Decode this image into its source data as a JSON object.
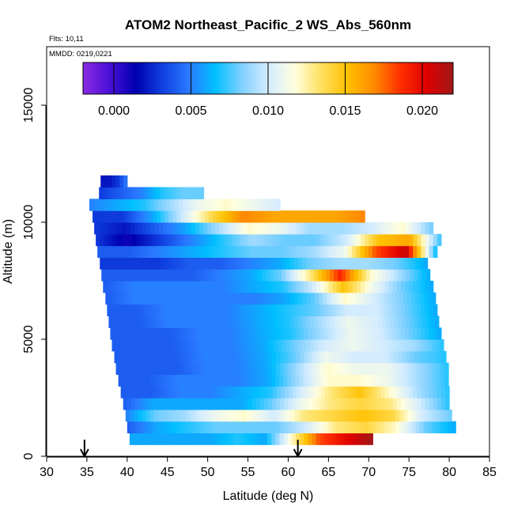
{
  "chart_data": {
    "type": "heatmap",
    "title": "ATOM2 Northeast_Pacific_2 WS_Abs_560nm",
    "flights_note": "Flts: 10,11",
    "date_note": "MMDD: 0219,0221",
    "xlabel": "Latitude (deg N)",
    "ylabel": "Altitude (m)",
    "xlim": [
      30,
      85
    ],
    "ylim": [
      0,
      17500
    ],
    "x_ticks": [
      "30",
      "35",
      "40",
      "45",
      "50",
      "55",
      "60",
      "65",
      "70",
      "75",
      "80",
      "85"
    ],
    "y_ticks": [
      "0",
      "5000",
      "10000",
      "15000"
    ],
    "colorbar": {
      "min": -0.002,
      "max": 0.022,
      "ticks": [
        "0.000",
        "0.005",
        "0.010",
        "0.015",
        "0.020"
      ],
      "colors": [
        "#8a2be2",
        "#4a10d8",
        "#0000b0",
        "#0f3fe0",
        "#2a7aff",
        "#00bfff",
        "#7fd0ff",
        "#d4ecff",
        "#ffffe0",
        "#ffe060",
        "#ffc000",
        "#ff8c00",
        "#ff3000",
        "#e00000",
        "#a01818"
      ]
    },
    "markers": [
      {
        "label": "flight marker",
        "x": 34.7
      },
      {
        "label": "flight marker",
        "x": 61.2
      }
    ],
    "grid_step": {
      "lat": 0.5,
      "alt": 500
    },
    "rows": [
      {
        "alt": 750,
        "lat": [
          40.3,
          70.5
        ],
        "values": [
          0.006,
          0.006,
          0.006,
          0.006,
          0.007,
          0.006,
          0.012,
          0.018,
          0.02,
          0.022
        ]
      },
      {
        "alt": 1250,
        "lat": [
          40.0,
          80.8
        ],
        "values": [
          0.004,
          0.006,
          0.007,
          0.008,
          0.008,
          0.008,
          0.01,
          0.013,
          0.014,
          0.012,
          0.008,
          0.006
        ]
      },
      {
        "alt": 1750,
        "lat": [
          39.8,
          80.3
        ],
        "values": [
          0.005,
          0.008,
          0.009,
          0.011,
          0.012,
          0.01,
          0.013,
          0.014,
          0.015,
          0.014,
          0.01,
          0.008
        ]
      },
      {
        "alt": 2250,
        "lat": [
          39.5,
          80.0
        ],
        "values": [
          0.004,
          0.006,
          0.006,
          0.006,
          0.006,
          0.008,
          0.011,
          0.013,
          0.014,
          0.013,
          0.01,
          0.007
        ]
      },
      {
        "alt": 2750,
        "lat": [
          39.2,
          80.0
        ],
        "values": [
          0.004,
          0.004,
          0.005,
          0.005,
          0.006,
          0.007,
          0.01,
          0.013,
          0.015,
          0.012,
          0.009,
          0.007
        ]
      },
      {
        "alt": 3250,
        "lat": [
          38.9,
          79.9
        ],
        "values": [
          0.004,
          0.004,
          0.005,
          0.005,
          0.005,
          0.006,
          0.009,
          0.012,
          0.012,
          0.011,
          0.009,
          0.007
        ]
      },
      {
        "alt": 3750,
        "lat": [
          38.6,
          79.9
        ],
        "values": [
          0.004,
          0.004,
          0.004,
          0.005,
          0.005,
          0.006,
          0.009,
          0.012,
          0.011,
          0.011,
          0.009,
          0.007
        ]
      },
      {
        "alt": 4250,
        "lat": [
          38.4,
          79.6
        ],
        "values": [
          0.004,
          0.004,
          0.004,
          0.005,
          0.005,
          0.006,
          0.008,
          0.011,
          0.01,
          0.01,
          0.008,
          0.007
        ]
      },
      {
        "alt": 4750,
        "lat": [
          38.1,
          79.3
        ],
        "values": [
          0.004,
          0.004,
          0.004,
          0.005,
          0.005,
          0.006,
          0.008,
          0.01,
          0.011,
          0.01,
          0.009,
          0.007
        ]
      },
      {
        "alt": 5250,
        "lat": [
          37.9,
          79.0
        ],
        "values": [
          0.004,
          0.004,
          0.004,
          0.005,
          0.005,
          0.006,
          0.007,
          0.009,
          0.011,
          0.01,
          0.008,
          0.006
        ]
      },
      {
        "alt": 5750,
        "lat": [
          37.7,
          78.7
        ],
        "values": [
          0.004,
          0.004,
          0.005,
          0.005,
          0.005,
          0.006,
          0.007,
          0.009,
          0.011,
          0.01,
          0.008,
          0.006
        ]
      },
      {
        "alt": 6250,
        "lat": [
          37.5,
          78.5
        ],
        "values": [
          0.004,
          0.004,
          0.005,
          0.005,
          0.005,
          0.006,
          0.007,
          0.008,
          0.01,
          0.01,
          0.008,
          0.006
        ]
      },
      {
        "alt": 6750,
        "lat": [
          37.3,
          78.3
        ],
        "values": [
          0.004,
          0.005,
          0.005,
          0.005,
          0.005,
          0.005,
          0.006,
          0.008,
          0.012,
          0.01,
          0.008,
          0.006
        ]
      },
      {
        "alt": 7250,
        "lat": [
          37.0,
          78.0
        ],
        "values": [
          0.004,
          0.005,
          0.005,
          0.005,
          0.005,
          0.006,
          0.007,
          0.01,
          0.015,
          0.011,
          0.008,
          0.006
        ]
      },
      {
        "alt": 7750,
        "lat": [
          36.8,
          77.6
        ],
        "values": [
          0.004,
          0.004,
          0.004,
          0.004,
          0.005,
          0.006,
          0.008,
          0.013,
          0.019,
          0.012,
          0.009,
          0.006
        ]
      },
      {
        "alt": 8250,
        "lat": [
          36.6,
          77.3
        ],
        "values": [
          0.003,
          0.003,
          0.003,
          0.004,
          0.004,
          0.005,
          0.006,
          0.008,
          0.009,
          0.009,
          0.008,
          0.006
        ]
      },
      {
        "alt": 8750,
        "lat": [
          36.3,
          78.5
        ],
        "values": [
          0.004,
          0.004,
          0.005,
          0.006,
          0.007,
          0.008,
          0.008,
          0.009,
          0.011,
          0.018,
          0.021,
          0.006
        ]
      },
      {
        "alt": 9250,
        "lat": [
          36.1,
          79.0
        ],
        "values": [
          0.003,
          0.001,
          0.003,
          0.005,
          0.007,
          0.009,
          0.008,
          0.008,
          0.01,
          0.015,
          0.016,
          0.007
        ]
      },
      {
        "alt": 9750,
        "lat": [
          35.9,
          78.0
        ],
        "values": [
          0.003,
          0.002,
          0.004,
          0.006,
          0.009,
          0.012,
          0.011,
          0.009,
          0.009,
          0.01,
          0.012,
          0.008
        ]
      },
      {
        "alt": 10250,
        "lat": [
          35.7,
          69.5
        ],
        "values": [
          0.003,
          0.003,
          0.006,
          0.01,
          0.014,
          0.017,
          0.016,
          0.016,
          0.016,
          0.017
        ]
      },
      {
        "alt": 10750,
        "lat": [
          35.3,
          59.0
        ],
        "values": [
          0.005,
          0.006,
          0.007,
          0.009,
          0.011,
          0.012,
          0.011,
          0.01
        ]
      },
      {
        "alt": 11250,
        "lat": [
          36.5,
          49.5
        ],
        "values": [
          0.003,
          0.004,
          0.005,
          0.007,
          0.008,
          0.008
        ]
      },
      {
        "alt": 11750,
        "lat": [
          36.7,
          40.0
        ],
        "values": [
          0.002,
          0.002,
          0.003,
          0.005
        ]
      }
    ]
  }
}
